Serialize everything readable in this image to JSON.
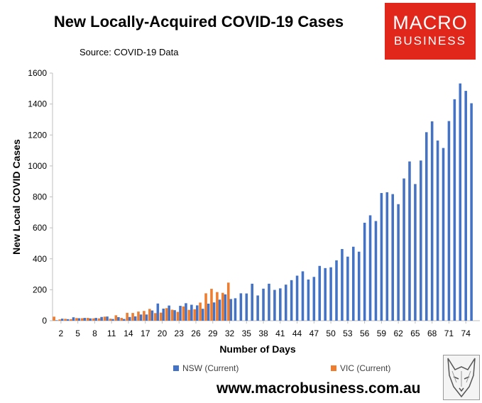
{
  "header": {
    "title": "New Locally-Acquired COVID-19 Cases",
    "source": "Source: COVID-19 Data"
  },
  "logo": {
    "line1": "MACRO",
    "line2": "BUSINESS"
  },
  "footer": {
    "url": "www.macrobusiness.com.au"
  },
  "colors": {
    "nsw": "#4472c4",
    "vic": "#ed7d31",
    "logo_bg": "#e1261c"
  },
  "chart_data": {
    "type": "bar",
    "xlabel": "Number of Days",
    "ylabel": "New Local COVID Cases",
    "ylim": [
      0,
      1600
    ],
    "yticks": [
      0,
      200,
      400,
      600,
      800,
      1000,
      1200,
      1400,
      1600
    ],
    "x_range": [
      1,
      76
    ],
    "xticks": [
      2,
      5,
      8,
      11,
      14,
      17,
      20,
      23,
      26,
      29,
      32,
      35,
      38,
      41,
      44,
      47,
      50,
      53,
      56,
      59,
      62,
      65,
      68,
      71,
      74
    ],
    "grid": false,
    "legend_position": "bottom",
    "series": [
      {
        "name": "NSW (Current)",
        "color": "#4472c4",
        "x": [
          1,
          2,
          3,
          4,
          5,
          6,
          7,
          8,
          9,
          10,
          11,
          12,
          13,
          14,
          15,
          16,
          17,
          18,
          19,
          20,
          21,
          22,
          23,
          24,
          25,
          26,
          27,
          28,
          29,
          30,
          31,
          32,
          33,
          34,
          35,
          36,
          37,
          38,
          39,
          40,
          41,
          42,
          43,
          44,
          45,
          46,
          47,
          48,
          49,
          50,
          51,
          52,
          53,
          54,
          55,
          56,
          57,
          58,
          59,
          60,
          61,
          62,
          63,
          64,
          65,
          66,
          67,
          68,
          69,
          70,
          71,
          72,
          73,
          74,
          75
        ],
        "values": [
          3,
          13,
          10,
          22,
          16,
          18,
          15,
          18,
          24,
          27,
          11,
          23,
          11,
          24,
          28,
          40,
          40,
          66,
          111,
          78,
          98,
          68,
          96,
          113,
          103,
          99,
          77,
          110,
          118,
          136,
          170,
          140,
          145,
          177,
          176,
          239,
          163,
          207,
          239,
          199,
          209,
          233,
          262,
          291,
          319,
          266,
          283,
          354,
          340,
          345,
          390,
          463,
          414,
          478,
          446,
          633,
          681,
          644,
          825,
          830,
          818,
          753,
          919,
          1029,
          883,
          1035,
          1218,
          1288,
          1164,
          1116,
          1290,
          1431,
          1533,
          1485,
          1405
        ]
      },
      {
        "name": "VIC (Current)",
        "color": "#ed7d31",
        "x": [
          1,
          2,
          3,
          4,
          5,
          6,
          7,
          8,
          9,
          10,
          11,
          12,
          13,
          14,
          15,
          16,
          17,
          18,
          19,
          20,
          21,
          22,
          23,
          24,
          25,
          26,
          27,
          28,
          29,
          30,
          31,
          32
        ],
        "values": [
          26,
          8,
          12,
          10,
          17,
          16,
          18,
          15,
          15,
          26,
          13,
          35,
          18,
          51,
          50,
          59,
          63,
          76,
          49,
          52,
          81,
          71,
          57,
          92,
          70,
          74,
          117,
          177,
          206,
          185,
          180,
          246
        ]
      }
    ]
  }
}
